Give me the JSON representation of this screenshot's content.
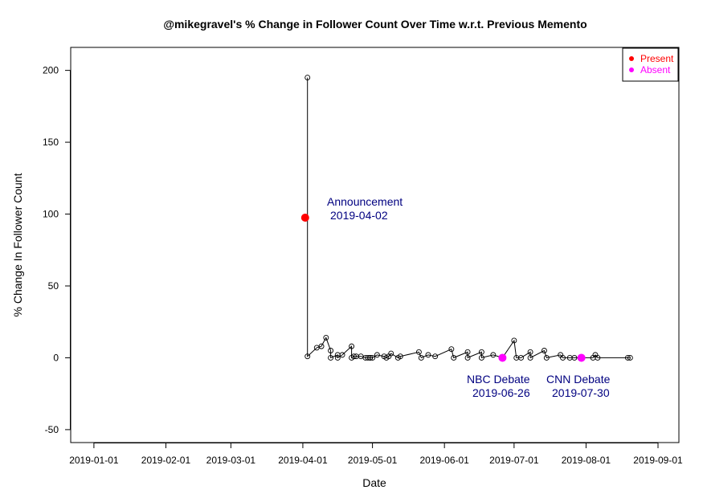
{
  "chart_data": {
    "type": "scatter",
    "title": "@mikegravel's % Change in Follower Count Over Time w.r.t. Previous Memento",
    "xlabel": "Date",
    "ylabel": "% Change In Follower Count",
    "x_ticks": [
      "2019-01-01",
      "2019-02-01",
      "2019-03-01",
      "2019-04-01",
      "2019-05-01",
      "2019-06-01",
      "2019-07-01",
      "2019-08-01",
      "2019-09-01"
    ],
    "y_ticks": [
      -50,
      0,
      50,
      100,
      150,
      200
    ],
    "xlim": [
      "2018-12-22",
      "2019-09-10"
    ],
    "ylim": [
      -59,
      216
    ],
    "legend": {
      "position": "top-right",
      "entries": [
        {
          "name": "Present",
          "color": "#ff0000"
        },
        {
          "name": "Absent",
          "color": "#ff00ff"
        }
      ]
    },
    "series": [
      {
        "style": "line with open circles",
        "color": "#000000",
        "x": [
          "2019-04-03",
          "2019-04-03",
          "2019-04-07",
          "2019-04-09",
          "2019-04-11",
          "2019-04-13",
          "2019-04-13",
          "2019-04-16",
          "2019-04-16",
          "2019-04-18",
          "2019-04-22",
          "2019-04-22",
          "2019-04-23",
          "2019-04-24",
          "2019-04-26",
          "2019-04-28",
          "2019-04-29",
          "2019-04-30",
          "2019-04-30",
          "2019-05-01",
          "2019-05-03",
          "2019-05-06",
          "2019-05-07",
          "2019-05-08",
          "2019-05-09",
          "2019-05-12",
          "2019-05-13",
          "2019-05-21",
          "2019-05-22",
          "2019-05-25",
          "2019-05-28",
          "2019-06-04",
          "2019-06-05",
          "2019-06-11",
          "2019-06-11",
          "2019-06-17",
          "2019-06-17",
          "2019-06-22",
          "2019-06-26",
          "2019-07-01",
          "2019-07-02",
          "2019-07-04",
          "2019-07-08",
          "2019-07-08",
          "2019-07-14",
          "2019-07-15",
          "2019-07-21",
          "2019-07-22",
          "2019-07-25",
          "2019-07-27",
          "2019-07-30",
          "2019-08-04",
          "2019-08-05",
          "2019-08-06",
          "2019-08-19",
          "2019-08-20"
        ],
        "y": [
          195,
          1,
          7,
          8,
          14,
          5,
          0,
          2,
          0,
          2,
          8,
          0,
          1,
          1,
          1,
          0,
          0,
          0,
          0,
          0,
          2,
          1,
          0,
          1,
          3,
          0,
          1,
          4,
          0,
          2,
          1,
          6,
          0,
          4,
          0,
          4,
          0,
          2,
          0,
          12,
          0,
          0,
          4,
          0,
          5,
          0,
          2,
          0,
          0,
          0,
          0,
          0,
          2,
          0,
          0,
          0
        ]
      }
    ],
    "present_points": [
      {
        "x": "2019-04-02",
        "y": 97.5
      }
    ],
    "absent_points": [
      {
        "x": "2019-06-26",
        "y": 0
      },
      {
        "x": "2019-07-30",
        "y": 0
      }
    ],
    "annotations": [
      {
        "lines": [
          "Announcement",
          "2019-04-02"
        ],
        "color": "#000080"
      },
      {
        "lines": [
          "NBC Debate",
          "2019-06-26"
        ],
        "color": "#000080"
      },
      {
        "lines": [
          "CNN Debate",
          "2019-07-30"
        ],
        "color": "#000080"
      }
    ]
  }
}
